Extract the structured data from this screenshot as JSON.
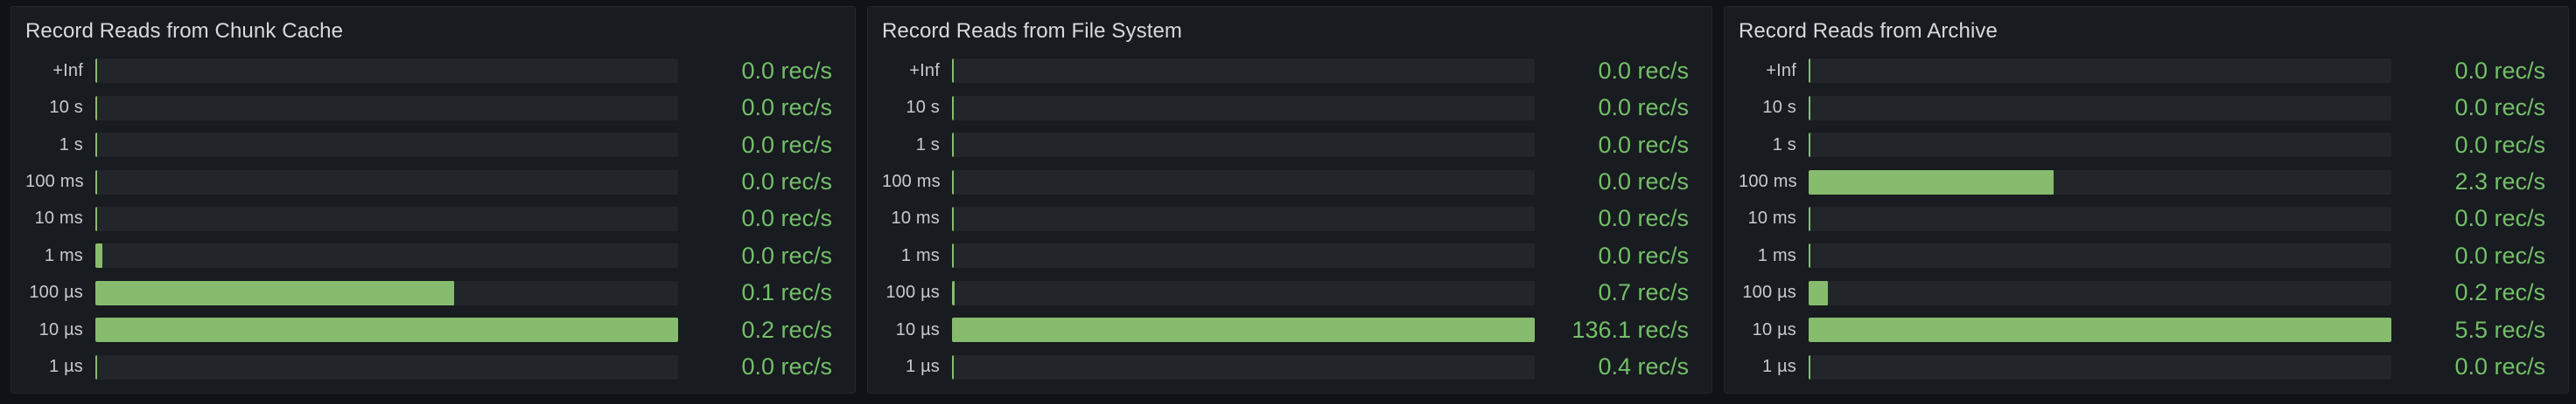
{
  "unit": "rec/s",
  "colors": {
    "page_background": "#111217",
    "panel_background": "#181b1f",
    "bar_fill_green": "#87bc6e",
    "value_text_green": "#73bf69",
    "track_background": "#22252a",
    "title_text": "#d8d9da",
    "label_text": "#c8c9cf"
  },
  "panels": [
    {
      "title": "Record Reads from Chunk Cache",
      "rows": [
        {
          "label": "+Inf",
          "value_text": "0.0 rec/s",
          "fill_pct": 0
        },
        {
          "label": "10 s",
          "value_text": "0.0 rec/s",
          "fill_pct": 0
        },
        {
          "label": "1 s",
          "value_text": "0.0 rec/s",
          "fill_pct": 0
        },
        {
          "label": "100 ms",
          "value_text": "0.0 rec/s",
          "fill_pct": 0
        },
        {
          "label": "10 ms",
          "value_text": "0.0 rec/s",
          "fill_pct": 0
        },
        {
          "label": "1 ms",
          "value_text": "0.0 rec/s",
          "fill_pct": 1.2
        },
        {
          "label": "100 µs",
          "value_text": "0.1 rec/s",
          "fill_pct": 61.5
        },
        {
          "label": "10 µs",
          "value_text": "0.2 rec/s",
          "fill_pct": 100
        },
        {
          "label": "1 µs",
          "value_text": "0.0 rec/s",
          "fill_pct": 0
        }
      ]
    },
    {
      "title": "Record Reads from File System",
      "rows": [
        {
          "label": "+Inf",
          "value_text": "0.0 rec/s",
          "fill_pct": 0
        },
        {
          "label": "10 s",
          "value_text": "0.0 rec/s",
          "fill_pct": 0
        },
        {
          "label": "1 s",
          "value_text": "0.0 rec/s",
          "fill_pct": 0
        },
        {
          "label": "100 ms",
          "value_text": "0.0 rec/s",
          "fill_pct": 0
        },
        {
          "label": "10 ms",
          "value_text": "0.0 rec/s",
          "fill_pct": 0
        },
        {
          "label": "1 ms",
          "value_text": "0.0 rec/s",
          "fill_pct": 0
        },
        {
          "label": "100 µs",
          "value_text": "0.7 rec/s",
          "fill_pct": 0.5
        },
        {
          "label": "10 µs",
          "value_text": "136.1 rec/s",
          "fill_pct": 100
        },
        {
          "label": "1 µs",
          "value_text": "0.4 rec/s",
          "fill_pct": 0.3
        }
      ]
    },
    {
      "title": "Record Reads from Archive",
      "rows": [
        {
          "label": "+Inf",
          "value_text": "0.0 rec/s",
          "fill_pct": 0
        },
        {
          "label": "10 s",
          "value_text": "0.0 rec/s",
          "fill_pct": 0
        },
        {
          "label": "1 s",
          "value_text": "0.0 rec/s",
          "fill_pct": 0.2
        },
        {
          "label": "100 ms",
          "value_text": "2.3 rec/s",
          "fill_pct": 42
        },
        {
          "label": "10 ms",
          "value_text": "0.0 rec/s",
          "fill_pct": 0
        },
        {
          "label": "1 ms",
          "value_text": "0.0 rec/s",
          "fill_pct": 0
        },
        {
          "label": "100 µs",
          "value_text": "0.2 rec/s",
          "fill_pct": 3.3
        },
        {
          "label": "10 µs",
          "value_text": "5.5 rec/s",
          "fill_pct": 100
        },
        {
          "label": "1 µs",
          "value_text": "0.0 rec/s",
          "fill_pct": 0
        }
      ]
    }
  ],
  "chart_data": [
    {
      "type": "bar",
      "orientation": "horizontal",
      "title": "Record Reads from Chunk Cache",
      "categories": [
        "+Inf",
        "10 s",
        "1 s",
        "100 ms",
        "10 ms",
        "1 ms",
        "100 µs",
        "10 µs",
        "1 µs"
      ],
      "values": [
        0.0,
        0.0,
        0.0,
        0.0,
        0.0,
        0.0,
        0.1,
        0.2,
        0.0
      ],
      "unit": "rec/s",
      "xlim": [
        0,
        0.2
      ],
      "grid": false,
      "legend": false
    },
    {
      "type": "bar",
      "orientation": "horizontal",
      "title": "Record Reads from File System",
      "categories": [
        "+Inf",
        "10 s",
        "1 s",
        "100 ms",
        "10 ms",
        "1 ms",
        "100 µs",
        "10 µs",
        "1 µs"
      ],
      "values": [
        0.0,
        0.0,
        0.0,
        0.0,
        0.0,
        0.0,
        0.7,
        136.1,
        0.4
      ],
      "unit": "rec/s",
      "xlim": [
        0,
        136.1
      ],
      "grid": false,
      "legend": false
    },
    {
      "type": "bar",
      "orientation": "horizontal",
      "title": "Record Reads from Archive",
      "categories": [
        "+Inf",
        "10 s",
        "1 s",
        "100 ms",
        "10 ms",
        "1 ms",
        "100 µs",
        "10 µs",
        "1 µs"
      ],
      "values": [
        0.0,
        0.0,
        0.0,
        2.3,
        0.0,
        0.0,
        0.2,
        5.5,
        0.0
      ],
      "unit": "rec/s",
      "xlim": [
        0,
        5.5
      ],
      "grid": false,
      "legend": false
    }
  ]
}
